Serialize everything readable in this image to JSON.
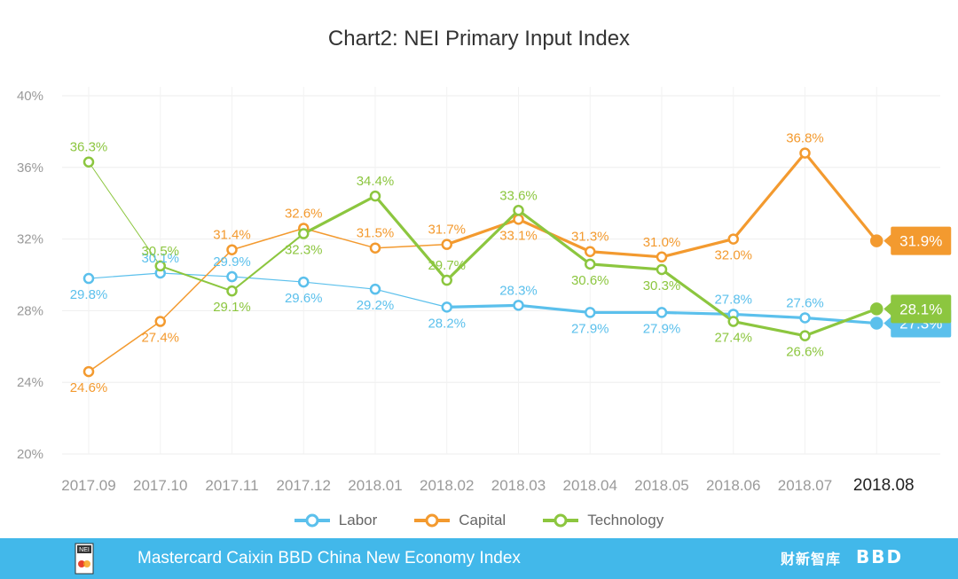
{
  "chart_data": {
    "type": "line",
    "title": "Chart2: NEI Primary Input Index",
    "categories": [
      "2017.09",
      "2017.10",
      "2017.11",
      "2017.12",
      "2018.01",
      "2018.02",
      "2018.03",
      "2018.04",
      "2018.05",
      "2018.06",
      "2018.07",
      "2018.08"
    ],
    "y_ticks": [
      "20%",
      "24%",
      "28%",
      "32%",
      "36%",
      "40%"
    ],
    "ylim": [
      20,
      40
    ],
    "grid": true,
    "legend_position": "bottom",
    "series": [
      {
        "name": "Labor",
        "color": "#5bc0ec",
        "values": [
          29.8,
          30.1,
          29.9,
          29.6,
          29.2,
          28.2,
          28.3,
          27.9,
          27.9,
          27.8,
          27.6,
          27.3
        ],
        "labels": [
          "29.8%",
          "30.1%",
          "29.9%",
          "29.6%",
          "29.2%",
          "28.2%",
          "28.3%",
          "27.9%",
          "27.9%",
          "27.8%",
          "27.6%",
          "27.3%"
        ]
      },
      {
        "name": "Capital",
        "color": "#f39a2f",
        "values": [
          24.6,
          27.4,
          31.4,
          32.6,
          31.5,
          31.7,
          33.1,
          31.3,
          31.0,
          32.0,
          36.8,
          31.9
        ],
        "labels": [
          "24.6%",
          "27.4%",
          "31.4%",
          "32.6%",
          "31.5%",
          "31.7%",
          "33.1%",
          "31.3%",
          "31.0%",
          "32.0%",
          "36.8%",
          "31.9%"
        ]
      },
      {
        "name": "Technology",
        "color": "#8cc63f",
        "values": [
          36.3,
          30.5,
          29.1,
          32.3,
          34.4,
          29.7,
          33.6,
          30.6,
          30.3,
          27.4,
          26.6,
          28.1
        ],
        "labels": [
          "36.3%",
          "30.5%",
          "29.1%",
          "32.3%",
          "34.4%",
          "29.7%",
          "33.6%",
          "30.6%",
          "30.3%",
          "27.4%",
          "26.6%",
          "28.1%"
        ]
      }
    ]
  },
  "footer": {
    "text": "Mastercard Caixin BBD China New Economy Index",
    "logo_left": "NEI",
    "logo_caixin": "财新智库",
    "logo_bbd": "BBD",
    "background": "#42b8ea"
  }
}
